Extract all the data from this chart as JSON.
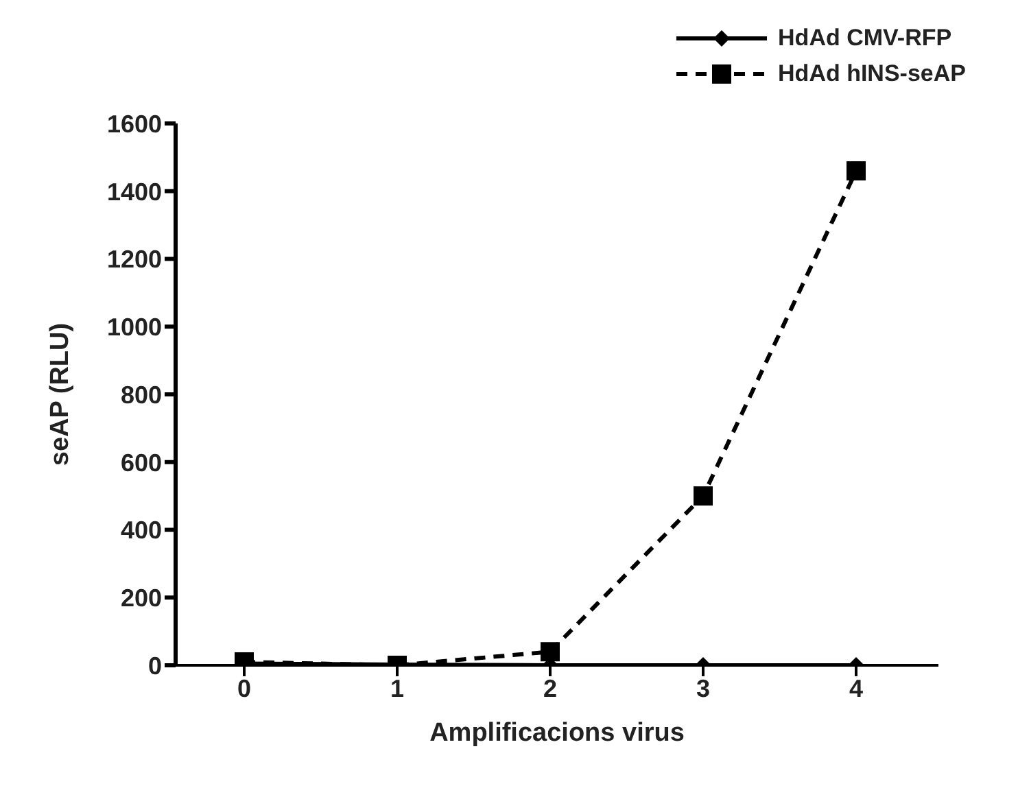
{
  "chart_data": {
    "type": "line",
    "xlabel": "Amplificacions virus",
    "ylabel": "seAP (RLU)",
    "categories": [
      "0",
      "1",
      "2",
      "3",
      "4"
    ],
    "series": [
      {
        "name": "HdAd CMV-RFP",
        "color": "#000000",
        "values": [
          5,
          2,
          0,
          0,
          0
        ],
        "marker": "diamond",
        "line_style": "solid"
      },
      {
        "name": "HdAd hINS-seAP",
        "color": "#000000",
        "values": [
          10,
          0,
          40,
          500,
          1460
        ],
        "marker": "square",
        "line_style": "dashed"
      }
    ],
    "ylim": [
      0,
      1600
    ],
    "yticks": [
      0,
      200,
      400,
      600,
      800,
      1000,
      1200,
      1400,
      1600
    ],
    "grid": false,
    "legend": "top right"
  }
}
